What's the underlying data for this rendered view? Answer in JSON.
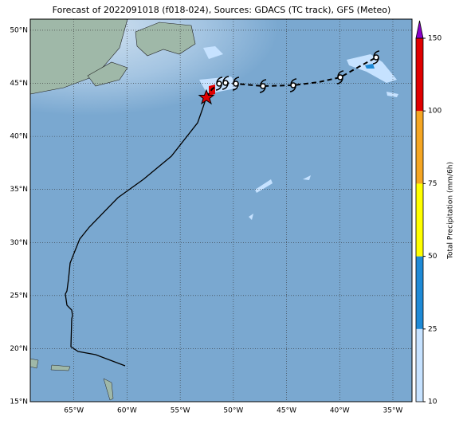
{
  "title": "Forecast of 2022091018 (f018-024), Sources: GDACS (TC track), GFS (Meteo)",
  "map": {
    "lonlim": [
      -69.1,
      -33.2
    ],
    "latlim": [
      15,
      51.05
    ],
    "lon_ticks": [
      {
        "value": -65,
        "label": "65°W"
      },
      {
        "value": -60,
        "label": "60°W"
      },
      {
        "value": -55,
        "label": "55°W"
      },
      {
        "value": -50,
        "label": "50°W"
      },
      {
        "value": -45,
        "label": "45°W"
      },
      {
        "value": -40,
        "label": "40°W"
      },
      {
        "value": -35,
        "label": "35°W"
      }
    ],
    "lat_ticks": [
      {
        "value": 15,
        "label": "15°N"
      },
      {
        "value": 20,
        "label": "20°N"
      },
      {
        "value": 25,
        "label": "25°N"
      },
      {
        "value": 30,
        "label": "30°N"
      },
      {
        "value": 35,
        "label": "35°N"
      },
      {
        "value": 40,
        "label": "40°N"
      },
      {
        "value": 45,
        "label": "45°N"
      },
      {
        "value": 50,
        "label": "50°N"
      }
    ]
  },
  "colorbar": {
    "label": "Total Precipitation (mm/6h)",
    "ticks": [
      10,
      25,
      50,
      75,
      100,
      150
    ],
    "colors": [
      "#c6e2ff",
      "#1e8ad6",
      "#ffff00",
      "#f5a623",
      "#e00000"
    ],
    "over_color": "#8a00c8"
  }
}
